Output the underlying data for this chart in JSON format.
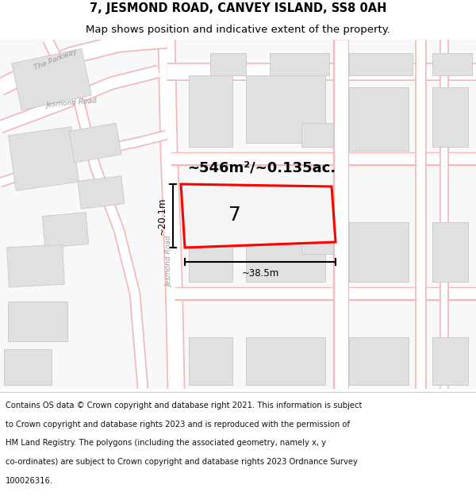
{
  "title_line1": "7, JESMOND ROAD, CANVEY ISLAND, SS8 0AH",
  "title_line2": "Map shows position and indicative extent of the property.",
  "bg_color": "#ffffff",
  "map_bg": "#f5f5f5",
  "road_color": "#ffffff",
  "building_fill": "#e0e0e0",
  "building_edge": "#cccccc",
  "highlight_color": "#ff0000",
  "text_color": "#000000",
  "road_outline": "#f4b8b8",
  "dim_label_area": "~546m²/~0.135ac.",
  "dim_width": "~38.5m",
  "dim_height": "~20.1m",
  "property_number": "7",
  "title_fontsize": 10.5,
  "subtitle_fontsize": 9.5,
  "footer_fontsize": 7.2,
  "footer_lines": [
    "Contains OS data © Crown copyright and database right 2021. This information is subject",
    "to Crown copyright and database rights 2023 and is reproduced with the permission of",
    "HM Land Registry. The polygons (including the associated geometry, namely x, y",
    "co-ordinates) are subject to Crown copyright and database rights 2023 Ordnance Survey",
    "100026316."
  ]
}
